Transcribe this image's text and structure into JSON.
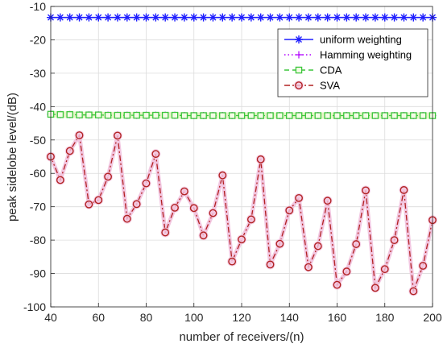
{
  "chart_data": {
    "type": "line",
    "title": "",
    "xlabel": "number of receivers/(n)",
    "ylabel": "peak sidelobe level/(dB)",
    "xlim": [
      40,
      200
    ],
    "ylim": [
      -100,
      -10
    ],
    "xticks": [
      40,
      60,
      80,
      100,
      120,
      140,
      160,
      180,
      200
    ],
    "yticks": [
      -100,
      -90,
      -80,
      -70,
      -60,
      -50,
      -40,
      -30,
      -20,
      -10
    ],
    "grid": true,
    "legend_position": "top-right",
    "x": [
      40,
      44,
      48,
      52,
      56,
      60,
      64,
      68,
      72,
      76,
      80,
      84,
      88,
      92,
      96,
      100,
      104,
      108,
      112,
      116,
      120,
      124,
      128,
      132,
      136,
      140,
      144,
      148,
      152,
      156,
      160,
      164,
      168,
      172,
      176,
      180,
      184,
      188,
      192,
      196,
      200
    ],
    "series": [
      {
        "name": "uniform weighting",
        "color": "#1f1fff",
        "marker": "asterisk",
        "line": "solid",
        "values": [
          -13.3,
          -13.3,
          -13.3,
          -13.3,
          -13.3,
          -13.3,
          -13.3,
          -13.3,
          -13.3,
          -13.3,
          -13.3,
          -13.3,
          -13.3,
          -13.3,
          -13.3,
          -13.3,
          -13.3,
          -13.3,
          -13.3,
          -13.3,
          -13.3,
          -13.3,
          -13.3,
          -13.3,
          -13.3,
          -13.3,
          -13.3,
          -13.3,
          -13.3,
          -13.3,
          -13.3,
          -13.3,
          -13.3,
          -13.3,
          -13.3,
          -13.3,
          -13.3,
          -13.3,
          -13.3,
          -13.3,
          -13.3
        ]
      },
      {
        "name": "Hamming weighting",
        "color": "#b000ff",
        "marker": "plus",
        "line": "dotted",
        "values": [
          -42.3,
          -42.4,
          -42.4,
          -42.5,
          -42.5,
          -42.5,
          -42.6,
          -42.6,
          -42.6,
          -42.6,
          -42.6,
          -42.6,
          -42.6,
          -42.6,
          -42.7,
          -42.7,
          -42.7,
          -42.7,
          -42.7,
          -42.7,
          -42.7,
          -42.7,
          -42.7,
          -42.7,
          -42.7,
          -42.7,
          -42.7,
          -42.7,
          -42.7,
          -42.7,
          -42.7,
          -42.7,
          -42.7,
          -42.7,
          -42.7,
          -42.7,
          -42.7,
          -42.7,
          -42.7,
          -42.7,
          -42.7
        ]
      },
      {
        "name": "CDA",
        "color": "#3cc63c",
        "marker": "square",
        "line": "dashed",
        "values": [
          -42.3,
          -42.4,
          -42.4,
          -42.5,
          -42.5,
          -42.5,
          -42.6,
          -42.6,
          -42.6,
          -42.6,
          -42.6,
          -42.6,
          -42.6,
          -42.6,
          -42.7,
          -42.7,
          -42.7,
          -42.7,
          -42.7,
          -42.7,
          -42.7,
          -42.7,
          -42.7,
          -42.7,
          -42.7,
          -42.7,
          -42.7,
          -42.7,
          -42.7,
          -42.7,
          -42.7,
          -42.7,
          -42.7,
          -42.7,
          -42.7,
          -42.7,
          -42.7,
          -42.7,
          -42.7,
          -42.7,
          -42.7
        ]
      },
      {
        "name": "SVA",
        "color": "#b22222",
        "marker": "circle",
        "line": "dashdot",
        "values": [
          -55,
          -62,
          -53.3,
          -48.6,
          -69.3,
          -68,
          -61,
          -48.7,
          -73.6,
          -69.2,
          -63,
          -54.2,
          -77.7,
          -70.3,
          -65.4,
          -70.4,
          -78.6,
          -71.9,
          -60.6,
          -86.4,
          -79.8,
          -73.8,
          -55.8,
          -87.3,
          -81.1,
          -71.1,
          -67.4,
          -88.1,
          -81.8,
          -68.2,
          -93.4,
          -89.4,
          -81.2,
          -65.1,
          -94.3,
          -88.7,
          -80,
          -65,
          -95.3,
          -87.7,
          -74
        ]
      }
    ]
  }
}
